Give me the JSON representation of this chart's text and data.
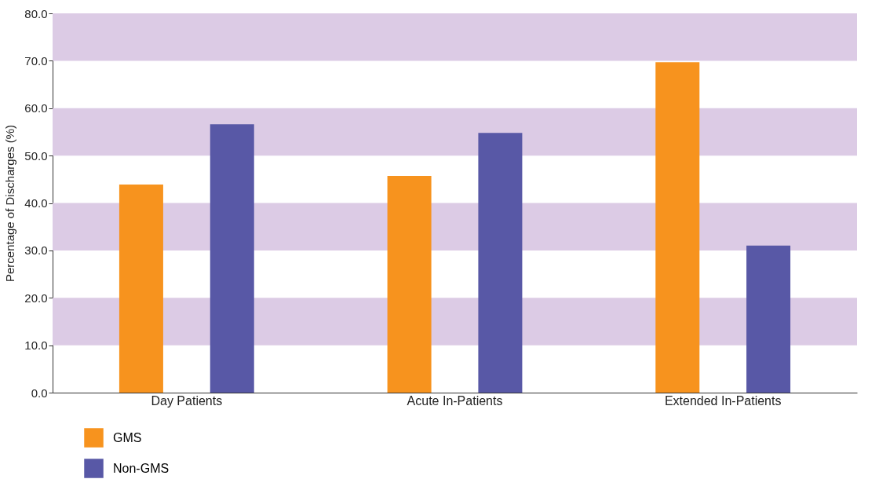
{
  "chart_data": {
    "type": "bar",
    "ylabel": "Percentage of Discharges (%)",
    "categories": [
      "Day Patients",
      "Acute In-Patients",
      "Extended In-Patients"
    ],
    "series": [
      {
        "name": "GMS",
        "color": "#f7931e",
        "values": [
          43.9,
          45.7,
          69.7
        ]
      },
      {
        "name": "Non-GMS",
        "color": "#5858a6",
        "values": [
          56.6,
          54.8,
          31.0
        ]
      }
    ],
    "ylim": [
      0,
      80
    ],
    "yticks": [
      {
        "value": 0,
        "label": "0.0"
      },
      {
        "value": 10,
        "label": "10.0"
      },
      {
        "value": 20,
        "label": "20.0"
      },
      {
        "value": 30,
        "label": "30.0"
      },
      {
        "value": 40,
        "label": "40.0"
      },
      {
        "value": 50,
        "label": "50.0"
      },
      {
        "value": 60,
        "label": "60.0"
      },
      {
        "value": 70,
        "label": "70.0"
      },
      {
        "value": 80,
        "label": "80.0"
      }
    ],
    "bands": [
      {
        "axis": "y",
        "from": 10,
        "to": 20,
        "color": "#dccbe5"
      },
      {
        "axis": "y",
        "from": 30,
        "to": 40,
        "color": "#dccbe5"
      },
      {
        "axis": "y",
        "from": 50,
        "to": 60,
        "color": "#dccbe5"
      },
      {
        "axis": "y",
        "from": 70,
        "to": 80,
        "color": "#dccbe5"
      }
    ],
    "grid": false,
    "legend": "bottom left"
  }
}
